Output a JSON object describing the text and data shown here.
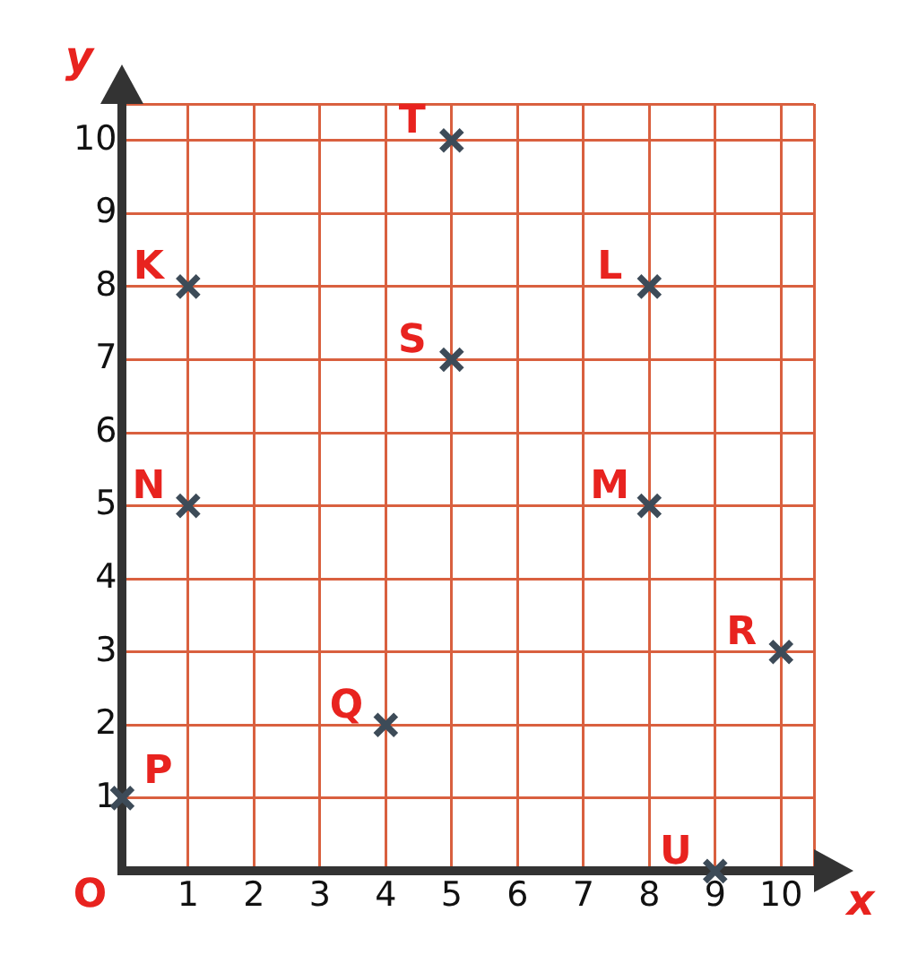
{
  "chart_data": {
    "type": "scatter",
    "xlabel": "x",
    "ylabel": "y",
    "x": [
      0,
      1,
      1,
      4,
      5,
      5,
      8,
      8,
      10,
      9
    ],
    "series": [
      {
        "color": "#3d4b58",
        "values": [
          1,
          8,
          5,
          2,
          10,
          7,
          8,
          5,
          3,
          0
        ]
      }
    ],
    "marker": "cross",
    "grid": true,
    "xlim": [
      0,
      10.5
    ],
    "ylim": [
      0,
      10.5
    ],
    "xticks": [
      {
        "value": 0,
        "label": null
      },
      1,
      2,
      3,
      4,
      5,
      6,
      7,
      8,
      9,
      10,
      {
        "value": 10.5,
        "label": null
      }
    ],
    "yticks": [
      {
        "value": 0,
        "label": null
      },
      1,
      2,
      3,
      4,
      5,
      6,
      7,
      8,
      9,
      10,
      {
        "value": 10.5,
        "label": null
      }
    ],
    "annotations": [
      {
        "text": "P",
        "x": 0,
        "y": 1
      },
      {
        "text": "K",
        "x": 1,
        "y": 8
      },
      {
        "text": "N",
        "x": 1,
        "y": 5
      },
      {
        "text": "Q",
        "x": 4,
        "y": 2
      },
      {
        "text": "T",
        "x": 5,
        "y": 10
      },
      {
        "text": "S",
        "x": 5,
        "y": 7
      },
      {
        "text": "L",
        "x": 8,
        "y": 8
      },
      {
        "text": "M",
        "x": 8,
        "y": 5
      },
      {
        "text": "R",
        "x": 10,
        "y": 3
      },
      {
        "text": "U",
        "x": 9,
        "y": 0
      },
      "O"
    ]
  }
}
